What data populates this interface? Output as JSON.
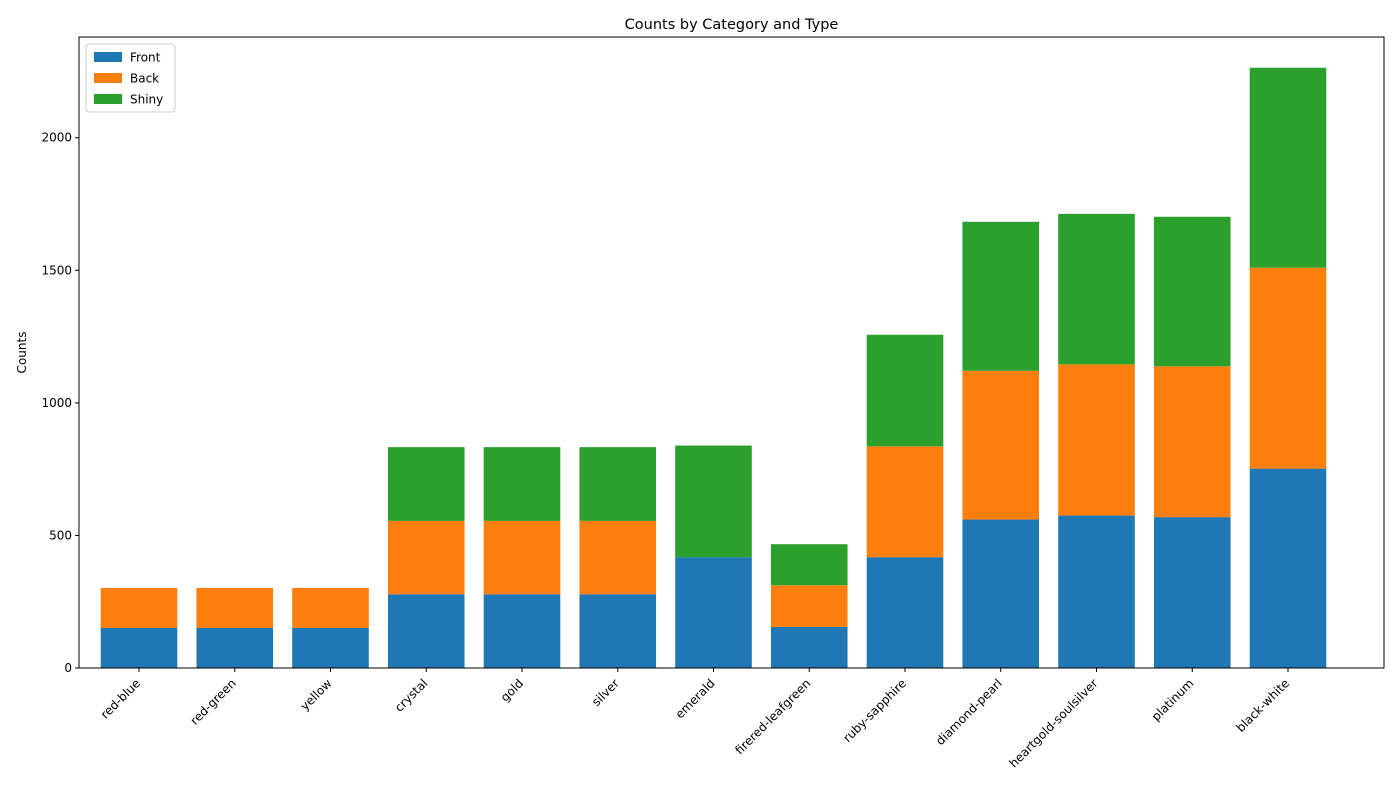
{
  "chart_data": {
    "type": "bar",
    "stacked": true,
    "title": "Counts by Category and Type",
    "xlabel": "",
    "ylabel": "Counts",
    "ylim": [
      0,
      2380
    ],
    "yticks": [
      0,
      500,
      1000,
      1500,
      2000
    ],
    "grid": false,
    "legend_position": "top-left",
    "categories": [
      "red-blue",
      "red-green",
      "yellow",
      "crystal",
      "gold",
      "silver",
      "emerald",
      "firered-leafgreen",
      "ruby-sapphire",
      "diamond-pearl",
      "heartgold-soulsilver",
      "platinum",
      "black-white"
    ],
    "series": [
      {
        "name": "Front",
        "color": "#1f77b4",
        "values": [
          151,
          151,
          151,
          278,
          278,
          278,
          418,
          155,
          418,
          560,
          575,
          569,
          752
        ]
      },
      {
        "name": "Back",
        "color": "#ff7f0e",
        "values": [
          151,
          151,
          151,
          277,
          277,
          277,
          0,
          157,
          418,
          561,
          570,
          569,
          758
        ]
      },
      {
        "name": "Shiny",
        "color": "#2ca02c",
        "values": [
          0,
          0,
          0,
          278,
          278,
          278,
          421,
          155,
          421,
          562,
          568,
          564,
          754
        ]
      }
    ]
  }
}
